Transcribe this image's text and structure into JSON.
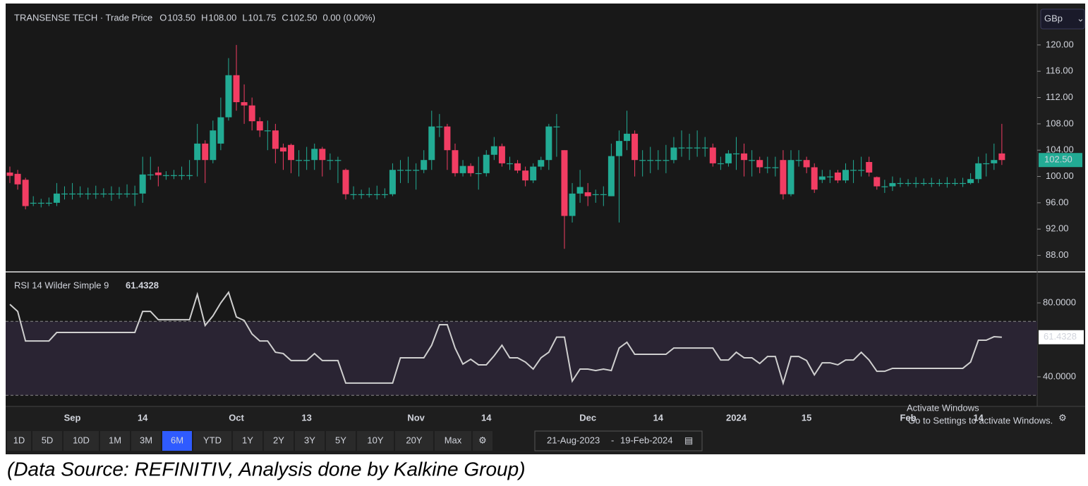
{
  "header": {
    "symbol": "TRANSENSE TECH · Trade Price",
    "ohlc": [
      {
        "label": "O",
        "value": "103.50"
      },
      {
        "label": "H",
        "value": "108.00"
      },
      {
        "label": "L",
        "value": "101.75"
      },
      {
        "label": "C",
        "value": "102.50"
      }
    ],
    "change": "0.00 (0.00%)"
  },
  "currency": "GBp",
  "chart_data": [
    {
      "type": "candlestick",
      "categories": [
        null,
        null,
        null,
        null,
        null,
        null,
        null,
        null,
        "Sep",
        null,
        null,
        null,
        null,
        null,
        null,
        null,
        null,
        "14",
        null,
        null,
        null,
        null,
        null,
        null,
        null,
        null,
        null,
        null,
        null,
        "Oct",
        null,
        null,
        null,
        null,
        null,
        null,
        null,
        null,
        "13",
        null,
        null,
        null,
        null,
        null,
        null,
        null,
        null,
        null,
        null,
        null,
        null,
        null,
        "Nov",
        null,
        null,
        null,
        null,
        null,
        null,
        null,
        null,
        "14",
        null,
        null,
        null,
        null,
        null,
        null,
        null,
        null,
        null,
        null,
        null,
        null,
        "Dec",
        null,
        null,
        null,
        null,
        null,
        null,
        null,
        null,
        "14",
        null,
        null,
        null,
        null,
        null,
        null,
        null,
        null,
        null,
        "2024",
        null,
        null,
        null,
        null,
        null,
        null,
        null,
        null,
        "15",
        null,
        null,
        null,
        null,
        null,
        null,
        null,
        null,
        null,
        null,
        null,
        null,
        "Feb",
        null,
        null,
        null,
        null,
        null,
        null,
        null,
        null,
        "14",
        null,
        null,
        null
      ],
      "open": [
        100.6,
        100.4,
        99.5,
        96,
        96,
        96,
        96,
        97.4,
        97.4,
        97.4,
        97.4,
        97.4,
        97.4,
        97.4,
        97.4,
        97.4,
        97.4,
        97.4,
        100.3,
        100.6,
        100.2,
        100.2,
        100.2,
        100.2,
        102.5,
        105,
        102.5,
        105,
        109,
        115.4,
        111.3,
        110.8,
        108.4,
        107,
        107,
        104.4,
        104.8,
        102.5,
        102.5,
        102.5,
        104.2,
        102.5,
        102.5,
        101,
        97.3,
        97.3,
        97.3,
        97.3,
        97.3,
        97.3,
        101,
        101,
        101,
        101,
        102.5,
        107.6,
        107.6,
        104,
        100.5,
        101.6,
        100.5,
        100.5,
        103.3,
        104.6,
        102,
        102,
        100.9,
        99.4,
        101.5,
        102.5,
        107.6,
        104,
        94,
        97.4,
        97.6,
        97.3,
        97.3,
        97,
        103.1,
        105.4,
        106.5,
        102.5,
        102.5,
        102.5,
        102.5,
        102.5,
        104.4,
        104.4,
        104.4,
        104.4,
        104.4,
        102,
        102,
        103.5,
        103.5,
        102.5,
        102.5,
        101.4,
        101.4,
        102.5,
        97.3,
        102.5,
        102.5,
        101.4,
        99.5,
        100,
        100.6,
        99.4,
        101,
        101,
        102.2,
        99.9,
        98.5,
        98.5,
        99,
        99,
        99,
        99,
        99,
        99,
        99,
        99,
        99,
        99,
        99.6,
        102,
        102,
        103.5
      ],
      "high": [
        101.5,
        101,
        99.8,
        97,
        96.6,
        96.8,
        99,
        98.5,
        99,
        98.5,
        98.3,
        98.6,
        98.2,
        98.5,
        98.4,
        98.8,
        98.6,
        103,
        103,
        101.5,
        100.8,
        101,
        101.5,
        102.5,
        108,
        105.5,
        108.5,
        112,
        118,
        120,
        114,
        112,
        109,
        108.5,
        108,
        105,
        105,
        104,
        104.5,
        105,
        104.5,
        103.5,
        103,
        101.2,
        98.5,
        98,
        98.3,
        98.6,
        98.2,
        102,
        102.5,
        103,
        102,
        104,
        110,
        109.5,
        108,
        105,
        102.5,
        102,
        103,
        104,
        106,
        105,
        103,
        102.5,
        101.5,
        102,
        103,
        108,
        109.5,
        104,
        99,
        101,
        99,
        98,
        98.5,
        105,
        107,
        110,
        107,
        104,
        104.5,
        104,
        104.8,
        106,
        107,
        106.5,
        107,
        106,
        105,
        103,
        104,
        106,
        105,
        104,
        103,
        103,
        103,
        104,
        104,
        104,
        103,
        102,
        101,
        101,
        101,
        102,
        102.5,
        103,
        103,
        100,
        99.5,
        100,
        99.8,
        99.6,
        99.9,
        99.7,
        99.8,
        99.6,
        99.9,
        99.7,
        99.8,
        100.5,
        103,
        103.5,
        105,
        108
      ],
      "low": [
        99,
        98,
        95,
        95.5,
        95.3,
        95.5,
        95.5,
        96.5,
        96.5,
        96.8,
        96.5,
        96.6,
        96.8,
        96.3,
        96.6,
        96.8,
        95.5,
        96,
        99.5,
        98.5,
        99.5,
        99.6,
        99.5,
        99.5,
        100,
        99,
        102,
        104,
        108.5,
        110,
        108,
        107,
        106,
        104,
        102,
        101,
        100.5,
        100,
        101,
        101,
        100,
        101,
        99,
        96.5,
        96.5,
        96.6,
        96.8,
        96.5,
        96.7,
        97,
        99,
        99,
        98,
        100.5,
        101,
        106,
        101,
        100,
        100,
        100,
        98,
        100,
        102.5,
        101.5,
        101,
        100.5,
        98.5,
        99,
        101,
        101,
        103,
        89,
        93,
        96,
        95.5,
        96,
        95.5,
        97,
        93,
        104,
        100,
        100,
        100.5,
        101,
        100.5,
        102,
        103,
        102.5,
        103,
        103,
        101.5,
        101,
        101.5,
        101,
        100,
        100,
        100.5,
        100.5,
        100,
        96.5,
        97,
        101.5,
        100.5,
        97.5,
        99,
        99,
        99,
        99,
        99,
        100,
        100,
        98,
        97.5,
        97.8,
        98.4,
        98.5,
        98.3,
        98.6,
        98.4,
        98.5,
        98.3,
        98.6,
        98.4,
        98.8,
        99,
        100,
        101,
        101.75
      ],
      "close": [
        100.1,
        98.8,
        95.5,
        96,
        96,
        96,
        97.4,
        97.4,
        97.4,
        97.4,
        97.4,
        97.4,
        97.4,
        97.4,
        97.4,
        97.4,
        97.4,
        100.3,
        100.3,
        100.2,
        100.2,
        100.2,
        100.2,
        100.2,
        105,
        102.5,
        107,
        109,
        115.4,
        111.3,
        110.8,
        108.4,
        107,
        107,
        104.2,
        103.8,
        102.5,
        102.5,
        102.5,
        104.2,
        102.5,
        102.5,
        102.5,
        97.3,
        97.3,
        97.3,
        97.3,
        97.3,
        97.3,
        101,
        101,
        101,
        101,
        102.5,
        107.6,
        107.6,
        104,
        100.5,
        101.6,
        100.5,
        100.5,
        103.3,
        104.6,
        102,
        102,
        100.9,
        99.4,
        101.5,
        102.5,
        107.6,
        107.6,
        94,
        97.4,
        98.4,
        97,
        97.3,
        97.3,
        103.1,
        105.4,
        106.5,
        102.5,
        102.5,
        102.5,
        102.5,
        102.5,
        104.4,
        104.4,
        104.4,
        104.4,
        104.4,
        102,
        102,
        103.5,
        103.5,
        102.5,
        102.5,
        101.4,
        101.4,
        101.4,
        97.3,
        102.5,
        102.5,
        101.4,
        98,
        100,
        100,
        99.4,
        101,
        101,
        101,
        100.6,
        98.5,
        98.5,
        99,
        99,
        99,
        99,
        99,
        99,
        99,
        99,
        99,
        99,
        99.6,
        102,
        102,
        102.5,
        102.5
      ],
      "up_color": "#22ab94",
      "down_color": "#f23d63",
      "ylim": [
        85.6,
        126.3
      ],
      "yticks": [
        {
          "value": 88,
          "label": "88.00"
        },
        {
          "value": 92,
          "label": "92.00"
        },
        {
          "value": 96,
          "label": "96.00"
        },
        {
          "value": 100,
          "label": "100.00"
        },
        {
          "value": 104,
          "label": "104.00"
        },
        {
          "value": 108,
          "label": "108.00"
        },
        {
          "value": 112,
          "label": "112.00"
        },
        {
          "value": 116,
          "label": "116.00"
        },
        {
          "value": 120,
          "label": "120.00"
        }
      ]
    },
    {
      "type": "line",
      "title": "RSI 14 Wilder Simple 9",
      "color": "#cfcfcf",
      "values": [
        79.2,
        75.4,
        59.4,
        59.4,
        59.4,
        59.4,
        64,
        64,
        64,
        64,
        64,
        64,
        64,
        64,
        64,
        64,
        64,
        75.4,
        75.4,
        70.9,
        70.9,
        70.9,
        70.9,
        70.9,
        84.6,
        67.8,
        73,
        80,
        85.7,
        72.4,
        70.5,
        63.2,
        59.4,
        59.4,
        53.3,
        52.6,
        48.8,
        48.8,
        48.8,
        52.6,
        48.8,
        48.8,
        48.8,
        36.6,
        36.6,
        36.6,
        36.6,
        36.6,
        36.6,
        36.6,
        50.3,
        50.3,
        50.3,
        50.3,
        57.1,
        68.2,
        68.2,
        55.6,
        46.9,
        49.5,
        46.5,
        46.5,
        51.4,
        57.1,
        50.3,
        50.3,
        48,
        44.2,
        50.3,
        53.3,
        61.5,
        61.5,
        37.7,
        44.2,
        44.2,
        43.4,
        44.2,
        43.4,
        55.6,
        58.7,
        52.2,
        52.2,
        52.2,
        52.2,
        52.2,
        55.6,
        55.6,
        55.6,
        55.6,
        55.6,
        55.6,
        49.1,
        49.1,
        53.3,
        50.3,
        50.3,
        47.2,
        51,
        51,
        36.6,
        51,
        51,
        48.8,
        41.1,
        47.6,
        47.6,
        46.5,
        49.1,
        49.1,
        53.3,
        49.1,
        43,
        43,
        44.6,
        44.6,
        44.6,
        44.6,
        44.6,
        44.6,
        44.6,
        44.6,
        44.6,
        44.6,
        48,
        59.8,
        59.8,
        61.7,
        61.4328
      ],
      "ylim": [
        24,
        96.4
      ],
      "yticks": [
        {
          "value": 40,
          "label": "40.0000"
        },
        {
          "value": 80,
          "label": "80.0000"
        }
      ],
      "bands": [
        30,
        70
      ],
      "band_color": "#2a2433"
    }
  ],
  "toolbar": {
    "ranges": [
      "1D",
      "5D",
      "10D",
      "1M",
      "3M",
      "6M",
      "YTD",
      "1Y",
      "2Y",
      "3Y",
      "5Y",
      "10Y",
      "20Y",
      "Max"
    ],
    "active_range": 5,
    "date_from": "21-Aug-2023",
    "date_sep": "-",
    "date_to": "19-Feb-2024"
  },
  "watermark": [
    "Activate Windows",
    "Go to Settings to activate Windows."
  ],
  "caption": "(Data Source: REFINITIV, Analysis done by Kalkine Group)"
}
